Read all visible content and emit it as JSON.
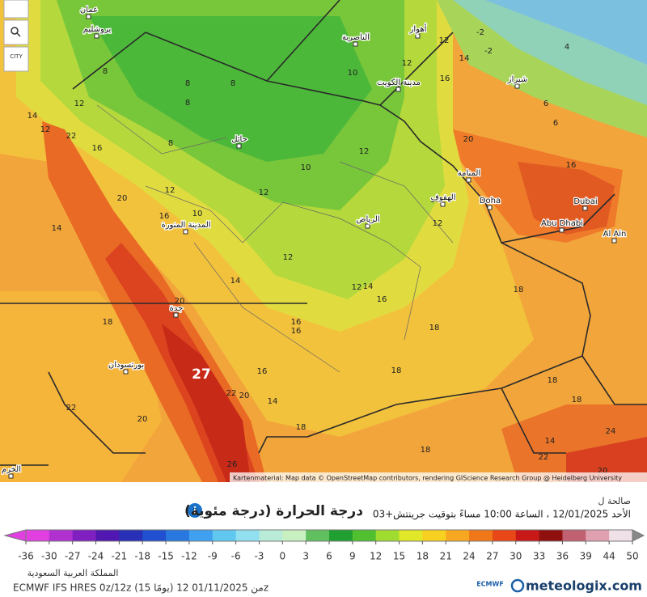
{
  "map": {
    "cities": [
      "عمان",
      "يروشليم",
      "الناصرية",
      "أهواز",
      "مدينة الكويت",
      "شيراز",
      "حائل",
      "المنامة",
      "الهفوف",
      "Doha",
      "الرياض",
      "المدينة المنورة",
      "Dubai",
      "Abu Dhabi",
      "Al Ain",
      "جدة",
      "بورتسودان",
      "الخرم"
    ],
    "temperatures": [
      12,
      10,
      12,
      16,
      14,
      8,
      8,
      8,
      12,
      8,
      8,
      14,
      12,
      22,
      16,
      12,
      10,
      20,
      16,
      20,
      12,
      12,
      16,
      12,
      16,
      10,
      14,
      12,
      14,
      12,
      14,
      16,
      18,
      16,
      16,
      18,
      18,
      20,
      16,
      18,
      18,
      27,
      22,
      20,
      22,
      14,
      20,
      18,
      18,
      14,
      24,
      26,
      18,
      20,
      22,
      6,
      6,
      4,
      -2,
      -2
    ],
    "attribution": "Kartenmaterial: Map data © OpenStreetMap contributors, rendering GIScience Research Group @ Heidelberg University"
  },
  "controls": {
    "city_button": "CITY"
  },
  "panel": {
    "title": "درجة الحرارة (درجة مئوية)",
    "valid_label": "صالحة ل",
    "valid_time": "الأحد 12/01/2025 ، الساعة 10:00 مساءً بتوقيت جرينتش+03",
    "scale": {
      "ticks": [
        -36,
        -30,
        -27,
        -24,
        -21,
        -18,
        -15,
        -12,
        -9,
        -6,
        -3,
        0,
        3,
        6,
        9,
        12,
        15,
        18,
        21,
        24,
        27,
        30,
        33,
        36,
        39,
        44,
        50
      ],
      "colors": [
        "#e040e0",
        "#b030d0",
        "#8020c0",
        "#5018b0",
        "#2830b8",
        "#2050d0",
        "#2878e0",
        "#40a0f0",
        "#60c8f0",
        "#90e0f0",
        "#b8ecd8",
        "#c8f0c0",
        "#60c060",
        "#20a030",
        "#50c030",
        "#a0dc30",
        "#e0e828",
        "#f8d020",
        "#f8a820",
        "#f07818",
        "#e84818",
        "#c81818",
        "#901010",
        "#c06070",
        "#e0a0b0",
        "#f0e0e8"
      ]
    },
    "region": "المملكة العربية السعودية",
    "model": "ECMWF IFS HRES 0z/12z (15 يومًا) من 01/11/2025 12z",
    "logo": "meteologix.com",
    "logo_small": "ECMWF"
  }
}
